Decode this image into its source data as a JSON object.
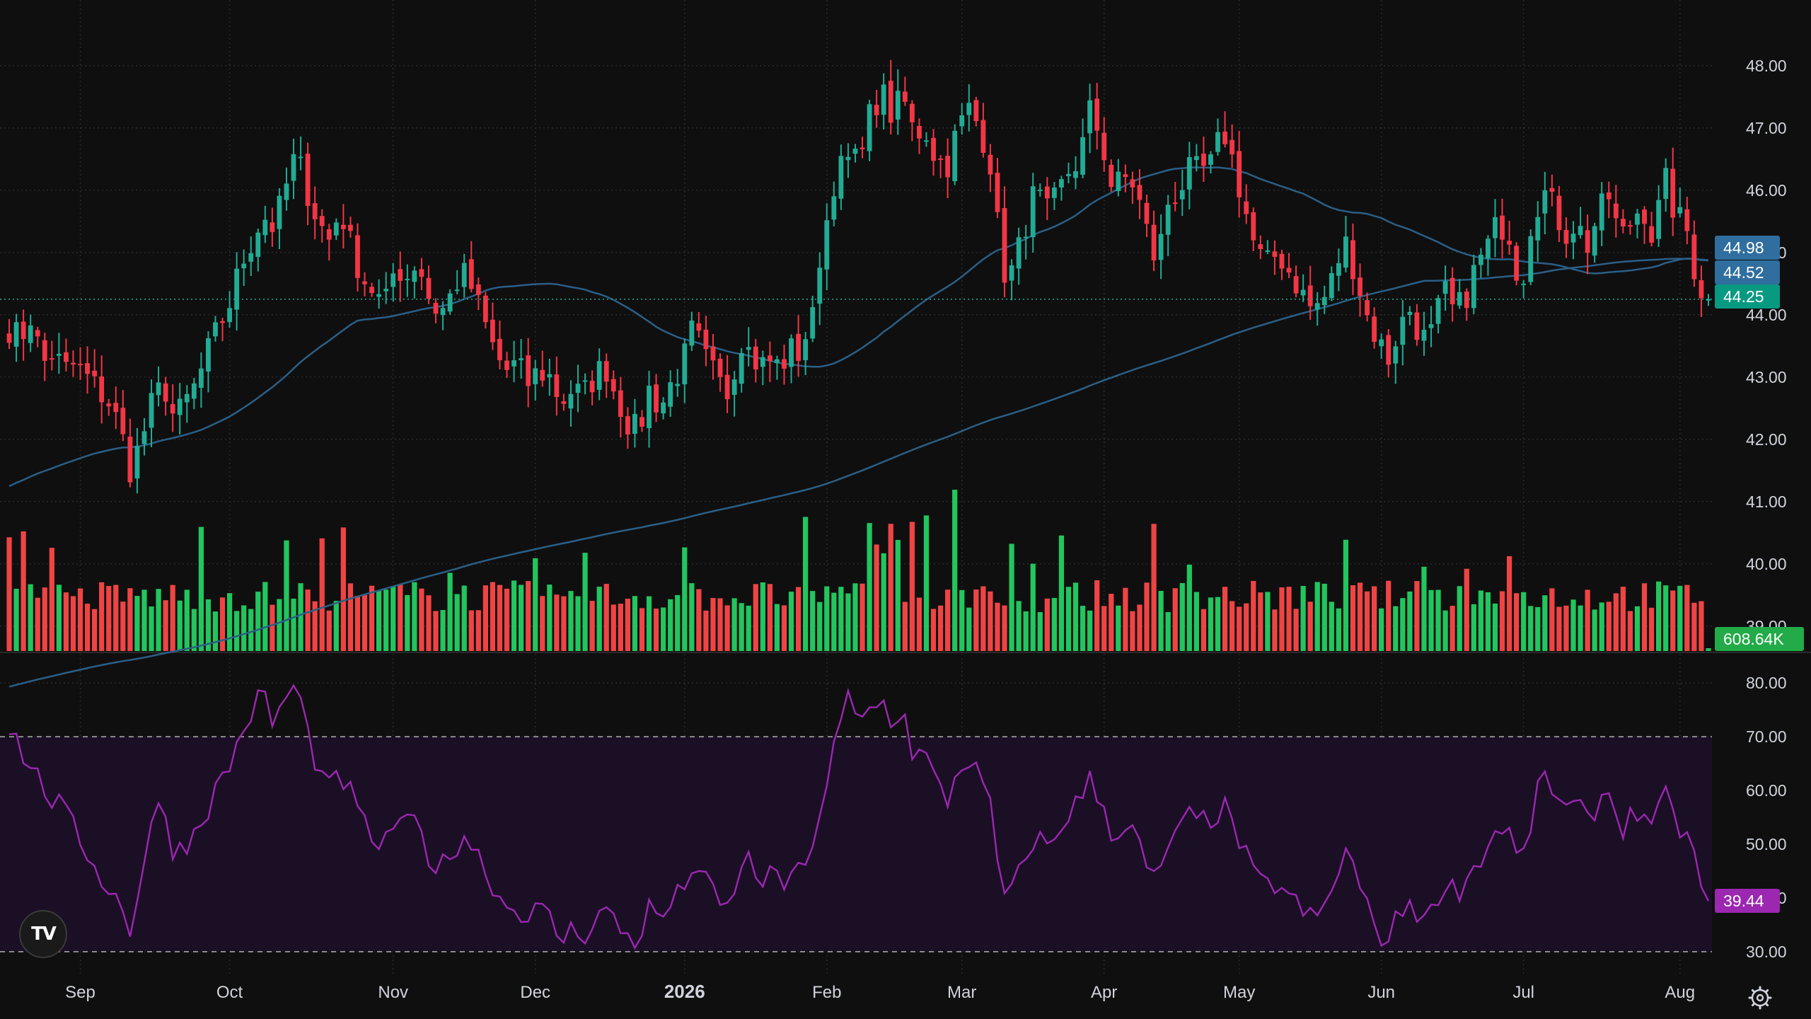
{
  "chart_data": {
    "type": "candlestick",
    "price_axis": {
      "ticks": [
        "48.00",
        "47.00",
        "46.00",
        "45.00",
        "44.00",
        "43.00",
        "42.00",
        "41.00",
        "40.00",
        "39.00"
      ],
      "range": [
        38.6,
        48.6
      ]
    },
    "rsi_axis": {
      "ticks": [
        "80.00",
        "70.00",
        "60.00",
        "50.00",
        "40.00",
        "30.00"
      ],
      "range": [
        28,
        82
      ],
      "upper_band": 70,
      "lower_band": 30
    },
    "time_axis": {
      "labels": [
        {
          "text": "Sep",
          "index": 10
        },
        {
          "text": "Oct",
          "index": 31
        },
        {
          "text": "Nov",
          "index": 54
        },
        {
          "text": "Dec",
          "index": 74
        },
        {
          "text": "2026",
          "index": 95,
          "bold": true
        },
        {
          "text": "Feb",
          "index": 115
        },
        {
          "text": "Mar",
          "index": 134
        },
        {
          "text": "Apr",
          "index": 154
        },
        {
          "text": "May",
          "index": 173
        },
        {
          "text": "Jun",
          "index": 193
        },
        {
          "text": "Jul",
          "index": 213
        },
        {
          "text": "Aug",
          "index": 235
        }
      ]
    },
    "badges": {
      "ma_short": {
        "text": "44.98",
        "color": "#2f6e9e"
      },
      "ma_long": {
        "text": "44.52",
        "color": "#2f6e9e"
      },
      "last_price": {
        "text": "44.25",
        "color": "#089981"
      },
      "volume": {
        "text": "608.64K",
        "color": "#22ab48"
      },
      "rsi": {
        "text": "39.44",
        "color": "#9c27b0"
      }
    },
    "colors": {
      "up": "#22ab94",
      "down": "#f23645",
      "volume_up": "#22c55e",
      "volume_down": "#ef4444",
      "ma": "#2b5f86",
      "rsi_line": "#9c27b0",
      "rsi_band": "#1b0f26"
    },
    "keys": [
      [
        43.8,
        43.6,
        44.0,
        43.2,
        43.4,
        43.1,
        43.2,
        43.0,
        42.8,
        42.6,
        42.2,
        41.5,
        42.0,
        42.6,
        42.9,
        42.3,
        42.6,
        42.9,
        43.4,
        43.8,
        44.2,
        44.8,
        45.2,
        45.6,
        45.4,
        46.0,
        46.6,
        46.0,
        45.5,
        45.2,
        45.7,
        45.1,
        44.6,
        44.4,
        44.1,
        44.8,
        44.6,
        44.9,
        44.3,
        44.0,
        44.3,
        44.7,
        44.4,
        43.9,
        43.4,
        43.1,
        43.2,
        42.9,
        43.1,
        43.0,
        42.6,
        42.8,
        42.7,
        43.0,
        43.2,
        42.7,
        42.3,
        42.1,
        42.8,
        42.5,
        42.9,
        43.2,
        43.8,
        43.3,
        43.0,
        42.7,
        43.4,
        43.7,
        43.2,
        43.4,
        43.0,
        43.6,
        43.2,
        44.5,
        45.2,
        46.4,
        46.8,
        46.3,
        47.2,
        47.6,
        47.2,
        47.5,
        46.9,
        47.0,
        46.5,
        46.4,
        47.0,
        47.3,
        47.0,
        46.4,
        44.7,
        44.7,
        45.4,
        46.0,
        45.6,
        45.9,
        46.3,
        46.5,
        47.3,
        46.8,
        46.0,
        46.2,
        46.1,
        45.4,
        44.8,
        45.8,
        46.0,
        46.3,
        46.3,
        46.4,
        47.0,
        46.4,
        45.7,
        45.0,
        44.8,
        45.0,
        44.7,
        44.4,
        44.1,
        44.2,
        44.6,
        45.2,
        44.7,
        44.0,
        43.6,
        43.3,
        43.8,
        44.1,
        43.6,
        43.7,
        44.4,
        44.0,
        44.3,
        44.8,
        45.1,
        45.5,
        45.3,
        44.4,
        45.6,
        46.0,
        45.7,
        45.3,
        45.5,
        45.1,
        45.6,
        45.9,
        45.2,
        45.5,
        45.8,
        45.2,
        46.2,
        45.6,
        45.4,
        44.5,
        44.25
      ]
    ],
    "ohlc_note_ignore": "",
    "rsi_values": [
      72,
      68,
      64,
      61,
      58,
      56,
      52,
      49,
      45,
      42,
      39,
      34,
      45,
      55,
      57,
      48,
      50,
      53,
      57,
      61,
      65,
      70,
      75,
      78,
      72,
      77,
      80,
      71,
      64,
      60,
      63,
      59,
      54,
      51,
      49,
      55,
      53,
      54,
      48,
      45,
      48,
      52,
      50,
      46,
      42,
      38,
      39,
      36,
      38,
      36,
      32,
      34,
      33,
      36,
      38,
      35,
      33,
      32,
      38,
      36,
      39,
      41,
      47,
      43,
      40,
      37,
      44,
      47,
      43,
      45,
      41,
      46,
      43,
      53,
      60,
      70,
      77,
      72,
      75,
      77,
      73,
      75,
      66,
      67,
      61,
      58,
      64,
      66,
      62,
      56,
      40,
      41,
      47,
      52,
      49,
      52,
      56,
      58,
      62,
      58,
      52,
      53,
      52,
      46,
      42,
      50,
      52,
      55,
      54,
      55,
      57,
      53,
      48,
      43,
      42,
      43,
      40,
      38,
      36,
      37,
      42,
      49,
      45,
      38,
      34,
      32,
      37,
      40,
      36,
      37,
      44,
      41,
      43,
      47,
      49,
      54,
      52,
      45,
      55,
      63,
      60,
      56,
      57,
      54,
      58,
      60,
      53,
      55,
      57,
      52,
      59,
      54,
      52,
      45,
      39.44
    ]
  }
}
